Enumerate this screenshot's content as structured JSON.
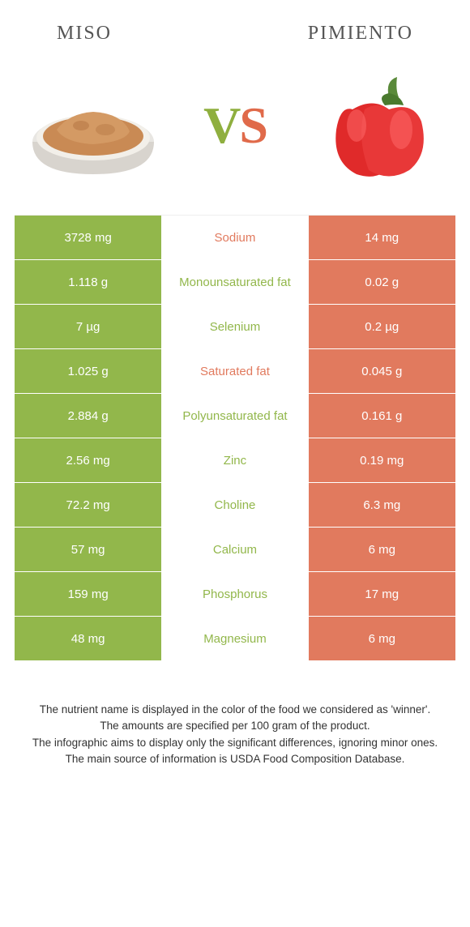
{
  "header": {
    "left_title": "MISO",
    "right_title": "PIMIENTO"
  },
  "vs": {
    "v": "V",
    "s": "S"
  },
  "colors": {
    "left": "#92b74b",
    "right": "#e17a5e",
    "mid_left_text": "#e17a5e",
    "mid_winner_left": "#92b74b",
    "mid_winner_right": "#e17a5e"
  },
  "rows": [
    {
      "left": "3728 mg",
      "mid": "Sodium",
      "mid_color": "#e17a5e",
      "right": "14 mg"
    },
    {
      "left": "1.118 g",
      "mid": "Monounsaturated fat",
      "mid_color": "#92b74b",
      "right": "0.02 g"
    },
    {
      "left": "7 µg",
      "mid": "Selenium",
      "mid_color": "#92b74b",
      "right": "0.2 µg"
    },
    {
      "left": "1.025 g",
      "mid": "Saturated fat",
      "mid_color": "#e17a5e",
      "right": "0.045 g"
    },
    {
      "left": "2.884 g",
      "mid": "Polyunsaturated fat",
      "mid_color": "#92b74b",
      "right": "0.161 g"
    },
    {
      "left": "2.56 mg",
      "mid": "Zinc",
      "mid_color": "#92b74b",
      "right": "0.19 mg"
    },
    {
      "left": "72.2 mg",
      "mid": "Choline",
      "mid_color": "#92b74b",
      "right": "6.3 mg"
    },
    {
      "left": "57 mg",
      "mid": "Calcium",
      "mid_color": "#92b74b",
      "right": "6 mg"
    },
    {
      "left": "159 mg",
      "mid": "Phosphorus",
      "mid_color": "#92b74b",
      "right": "17 mg"
    },
    {
      "left": "48 mg",
      "mid": "Magnesium",
      "mid_color": "#92b74b",
      "right": "6 mg"
    }
  ],
  "footer": {
    "line1": "The nutrient name is displayed in the color of the food we considered as 'winner'.",
    "line2": "The amounts are specified per 100 gram of the product.",
    "line3": "The infographic aims to display only the significant differences, ignoring minor ones.",
    "line4": "The main source of information is USDA Food Composition Database."
  }
}
